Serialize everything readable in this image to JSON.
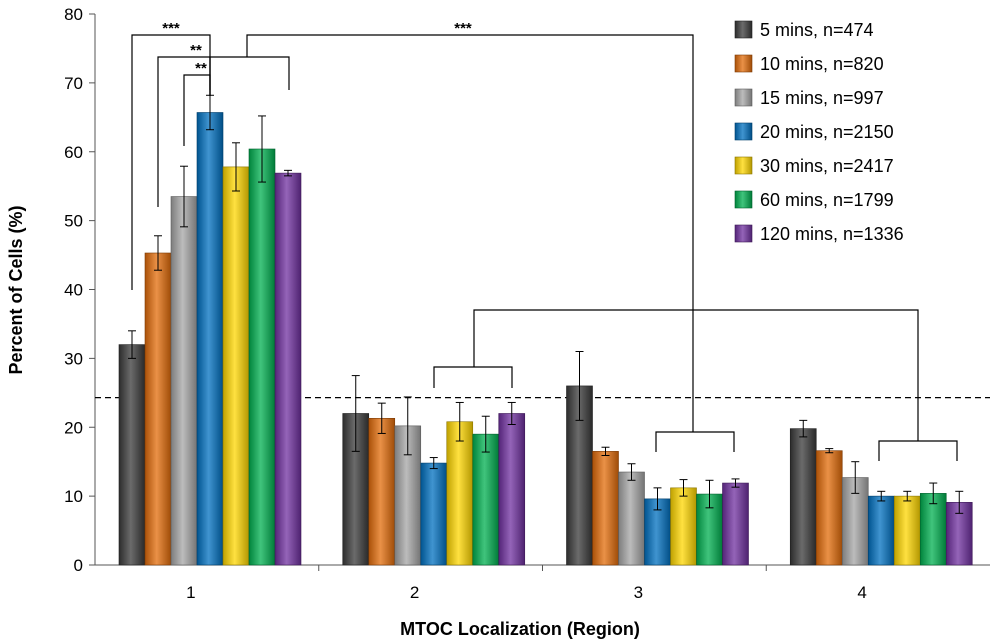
{
  "chart_data": {
    "type": "bar",
    "title": "",
    "xlabel": "MTOC Localization (Region)",
    "ylabel": "Percent of Cells (%)",
    "ylim": [
      0,
      80
    ],
    "yticks": [
      "0",
      "10",
      "20",
      "30",
      "40",
      "50",
      "60",
      "70",
      "80"
    ],
    "categories": [
      "1",
      "2",
      "3",
      "4"
    ],
    "reference_line": 24.3,
    "legend_position": "top-right",
    "series": [
      {
        "name": "5 mins, n=474",
        "color": "#3a3a3a",
        "values": [
          32.0,
          22.0,
          26.0,
          19.8
        ],
        "errors": [
          2.0,
          5.5,
          5.0,
          1.2
        ]
      },
      {
        "name": "10 mins, n=820",
        "color": "#e36c0a",
        "values": [
          45.3,
          21.3,
          16.5,
          16.6
        ],
        "errors": [
          2.5,
          2.2,
          0.6,
          0.3
        ]
      },
      {
        "name": "15 mins, n=997",
        "color": "#a6a6a6",
        "values": [
          53.5,
          20.2,
          13.5,
          12.7
        ],
        "errors": [
          4.4,
          4.2,
          1.2,
          2.3
        ]
      },
      {
        "name": "20 mins, n=2150",
        "color": "#0070c0",
        "values": [
          65.7,
          14.8,
          9.6,
          10.0
        ],
        "errors": [
          2.5,
          0.8,
          1.6,
          0.7
        ]
      },
      {
        "name": "30 mins, n=2417",
        "color": "#ffd700",
        "values": [
          57.8,
          20.8,
          11.2,
          10.0
        ],
        "errors": [
          3.5,
          2.8,
          1.2,
          0.7
        ]
      },
      {
        "name": "60 mins, n=1799",
        "color": "#00b050",
        "values": [
          60.4,
          19.0,
          10.3,
          10.4
        ],
        "errors": [
          4.8,
          2.6,
          2.0,
          1.5
        ]
      },
      {
        "name": "120 mins, n=1336",
        "color": "#7030a0",
        "values": [
          56.9,
          22.0,
          11.9,
          9.1
        ],
        "errors": [
          0.4,
          1.6,
          0.6,
          1.6
        ]
      }
    ],
    "significance": [
      {
        "label": "***",
        "note": "5 mins vs 20 mins, region 1"
      },
      {
        "label": "**",
        "note": "10 mins vs 20 mins, region 1"
      },
      {
        "label": "**",
        "note": "15 mins vs 20 mins, region 1"
      },
      {
        "label": "***",
        "note": "region 1 (20-120 mins) vs region 3 (20-120 mins)"
      }
    ]
  }
}
